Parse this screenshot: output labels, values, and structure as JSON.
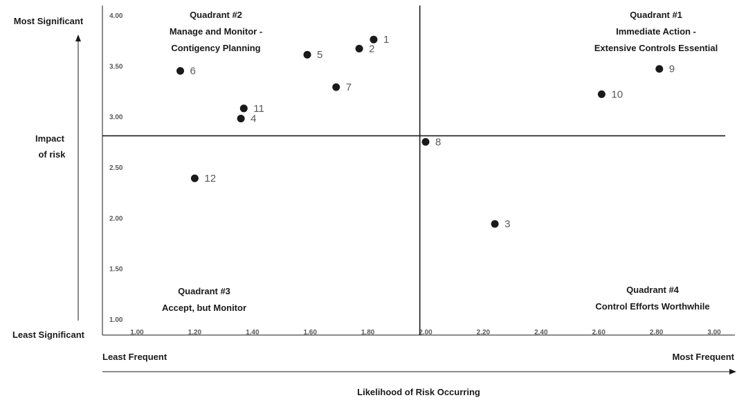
{
  "chart_data": {
    "type": "scatter",
    "title": "",
    "xlabel": "Likelihood of Risk Occurring",
    "ylabel": "Impact of risk",
    "ylabel_lines": [
      "Impact",
      "of risk"
    ],
    "xlim": [
      1.0,
      3.0
    ],
    "ylim": [
      1.0,
      4.0
    ],
    "x_ticks": [
      "1.00",
      "1.20",
      "1.40",
      "1.60",
      "1.80",
      "2.00",
      "2.20",
      "2.40",
      "2.60",
      "2.80",
      "3.00"
    ],
    "y_ticks": [
      "1.00",
      "1.50",
      "2.00",
      "2.50",
      "3.00",
      "3.50",
      "4.00"
    ],
    "x_axis_ends": {
      "low": "Least Frequent",
      "high": "Most Frequent"
    },
    "y_axis_ends": {
      "low": "Least Significant",
      "high": "Most Significant"
    },
    "divider": {
      "x": 1.98,
      "y": 2.81
    },
    "grid": false,
    "points": [
      {
        "label": "1",
        "x": 1.82,
        "y": 3.76
      },
      {
        "label": "2",
        "x": 1.77,
        "y": 3.67
      },
      {
        "label": "3",
        "x": 2.24,
        "y": 1.94
      },
      {
        "label": "4",
        "x": 1.36,
        "y": 2.98
      },
      {
        "label": "5",
        "x": 1.59,
        "y": 3.61
      },
      {
        "label": "6",
        "x": 1.15,
        "y": 3.45
      },
      {
        "label": "7",
        "x": 1.69,
        "y": 3.29
      },
      {
        "label": "8",
        "x": 2.0,
        "y": 2.75
      },
      {
        "label": "9",
        "x": 2.81,
        "y": 3.47
      },
      {
        "label": "10",
        "x": 2.61,
        "y": 3.22
      },
      {
        "label": "11",
        "x": 1.37,
        "y": 3.08
      },
      {
        "label": "12",
        "x": 1.2,
        "y": 2.39
      }
    ],
    "quadrants": [
      {
        "id": "q1",
        "lines": [
          "Quadrant #1",
          "Immediate Action -",
          "Extensive Controls Essential"
        ]
      },
      {
        "id": "q2",
        "lines": [
          "Quadrant #2",
          "Manage and Monitor -",
          "Contigency Planning"
        ]
      },
      {
        "id": "q3",
        "lines": [
          "Quadrant #3",
          "Accept, but Monitor"
        ]
      },
      {
        "id": "q4",
        "lines": [
          "Quadrant #4",
          "Control Efforts Worthwhile"
        ]
      }
    ],
    "colors": {
      "point": "#1a1a1a",
      "axis": "#1a1a1a",
      "tick_text": "#595959"
    }
  }
}
